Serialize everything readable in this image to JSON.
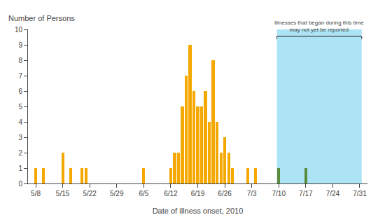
{
  "chart_data": {
    "type": "bar",
    "xlabel": "Date of illness onset, 2010",
    "ylabel": "Number of Persons",
    "x": [
      0,
      2,
      7,
      9,
      12,
      13,
      28,
      35,
      36,
      37,
      38,
      39,
      40,
      41,
      42,
      43,
      44,
      45,
      46,
      47,
      48,
      49,
      50,
      51,
      55,
      57,
      63,
      70
    ],
    "values": [
      1,
      1,
      2,
      1,
      1,
      1,
      1,
      1,
      2,
      2,
      5,
      7,
      9,
      6,
      5,
      5,
      6,
      4,
      8,
      4,
      2,
      3,
      2,
      1,
      1,
      1,
      1,
      1
    ],
    "colors": [
      "#F5A800",
      "#F5A800",
      "#F5A800",
      "#F5A800",
      "#F5A800",
      "#F5A800",
      "#F5A800",
      "#F5A800",
      "#F5A800",
      "#F5A800",
      "#F5A800",
      "#F5A800",
      "#F5A800",
      "#F5A800",
      "#F5A800",
      "#F5A800",
      "#F5A800",
      "#F5A800",
      "#F5A800",
      "#F5A800",
      "#F5A800",
      "#F5A800",
      "#F5A800",
      "#F5A800",
      "#F5A800",
      "#F5A800",
      "#5A8A3C",
      "#5A8A3C"
    ],
    "xlim": [
      -2,
      86
    ],
    "xticks": [
      {
        "value": 0,
        "label": "5/8"
      },
      {
        "value": 7,
        "label": "5/15"
      },
      {
        "value": 14,
        "label": "5/22"
      },
      {
        "value": 21,
        "label": "5/29"
      },
      {
        "value": 28,
        "label": "6/5"
      },
      {
        "value": 35,
        "label": "6/12"
      },
      {
        "value": 42,
        "label": "6/19"
      },
      {
        "value": 49,
        "label": "6/26"
      },
      {
        "value": 56,
        "label": "7/3"
      },
      {
        "value": 63,
        "label": "7/10"
      },
      {
        "value": 70,
        "label": "7/17"
      },
      {
        "value": 77,
        "label": "7/24"
      },
      {
        "value": 84,
        "label": "7/31"
      }
    ],
    "ylim": [
      0,
      10
    ],
    "yticks": [
      0,
      1,
      2,
      3,
      4,
      5,
      6,
      7,
      8,
      9,
      10
    ],
    "grid": false,
    "shaded_region": {
      "x": [
        63,
        84
      ],
      "color": "#ADE4F5"
    },
    "bracket": {
      "x": [
        63,
        84
      ],
      "y": 9.55,
      "text": "Illnesses that began during this time\nmay not yet be reported"
    }
  }
}
